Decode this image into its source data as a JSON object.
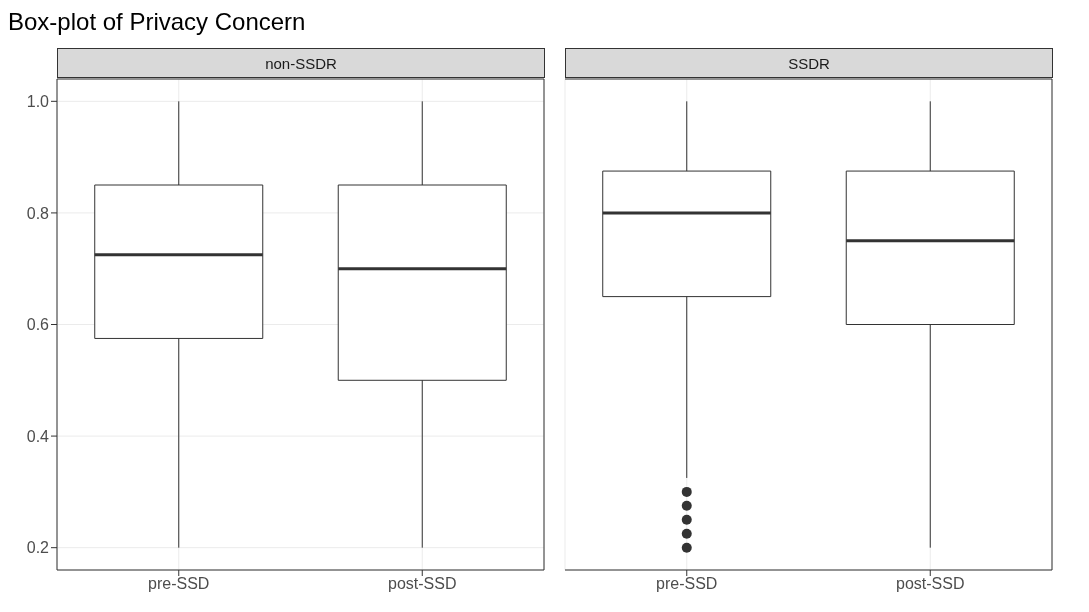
{
  "chart_data": [
    {
      "type": "box",
      "title": "Box-plot of Privacy Concern",
      "subtitle": "non-SSDR",
      "categories": [
        "pre-SSD",
        "post-SSD"
      ],
      "boxes": [
        {
          "low": 0.2,
          "q1": 0.575,
          "median": 0.725,
          "q3": 0.85,
          "high": 1.0
        },
        {
          "low": 0.2,
          "q1": 0.5,
          "median": 0.7,
          "q3": 0.85,
          "high": 1.0
        }
      ],
      "ylim": [
        0.16,
        1.04
      ],
      "yticks": [
        0.2,
        0.4,
        0.6,
        0.8,
        {
          "value": 1,
          "label": "1.0"
        }
      ],
      "grid": true
    },
    {
      "type": "box",
      "subtitle": "SSDR",
      "categories": [
        "pre-SSD",
        "post-SSD"
      ],
      "boxes": [
        {
          "low": 0.325,
          "q1": 0.65,
          "median": 0.8,
          "q3": 0.875,
          "high": 1.0,
          "outliers": [
            0.3,
            0.275,
            0.25,
            0.225,
            0.2
          ]
        },
        {
          "low": 0.2,
          "q1": 0.6,
          "median": 0.75,
          "q3": 0.875,
          "high": 1.0
        }
      ],
      "ylim": [
        0.16,
        1.04
      ],
      "yticks": [
        0.2,
        0.4,
        0.6,
        0.8,
        1
      ],
      "grid": true,
      "tick_labels": "x"
    }
  ]
}
